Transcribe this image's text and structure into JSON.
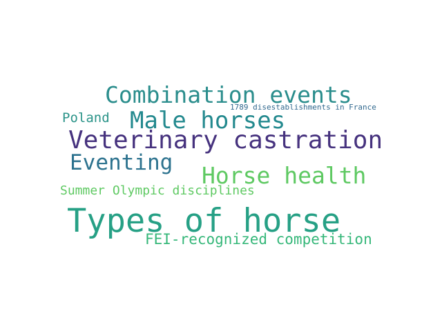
{
  "word_cloud": {
    "words": [
      {
        "id": "types",
        "text": "Types of horse",
        "color": "#26a085"
      },
      {
        "id": "combination",
        "text": "Combination events",
        "color": "#2a8d8c"
      },
      {
        "id": "veterinary",
        "text": "Veterinary castration",
        "color": "#46327e"
      },
      {
        "id": "male",
        "text": "Male horses",
        "color": "#23898e"
      },
      {
        "id": "horsehealth",
        "text": "Horse health",
        "color": "#5ec962"
      },
      {
        "id": "eventing",
        "text": "Eventing",
        "color": "#2c728e"
      },
      {
        "id": "poland",
        "text": "Poland",
        "color": "#2a9388"
      },
      {
        "id": "summer",
        "text": "Summer Olympic disciplines",
        "color": "#5ec962"
      },
      {
        "id": "fei",
        "text": "FEI-recognized competition",
        "color": "#35b779"
      },
      {
        "id": "1789",
        "text": "1789 disestablishments in France",
        "color": "#31688e"
      }
    ]
  }
}
